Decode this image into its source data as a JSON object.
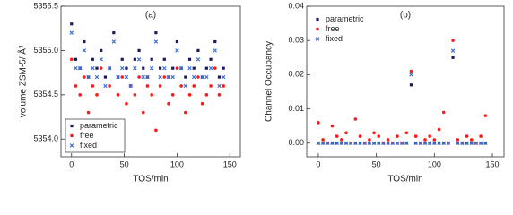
{
  "chart_data": [
    {
      "type": "scatter",
      "annotation": "(a)",
      "x_label": "TOS/min",
      "y_label": "volume ZSM-5/ Å³",
      "x": [
        0,
        4,
        8,
        12,
        16,
        20,
        24,
        28,
        32,
        36,
        40,
        44,
        48,
        52,
        56,
        60,
        64,
        68,
        72,
        76,
        80,
        84,
        88,
        92,
        96,
        100,
        104,
        108,
        112,
        116,
        120,
        124,
        128,
        132,
        136,
        140,
        144
      ],
      "xlim": [
        -10,
        160
      ],
      "xticks": [
        0,
        50,
        100,
        150
      ],
      "ylim": [
        5353.8,
        5355.5
      ],
      "yticks": [
        {
          "value": 5354,
          "label": "5354.0"
        },
        5354.5,
        {
          "value": 5355,
          "label": "5355.0"
        },
        5355.5
      ],
      "legend": "lower left",
      "legend_box": true,
      "series": [
        {
          "name": "parametric",
          "color": "#1a1a5e",
          "marker": "square",
          "values": [
            5355.3,
            5354.9,
            5354.8,
            5355.1,
            5354.7,
            5354.9,
            5354.8,
            5355.0,
            5354.7,
            5354.8,
            5355.2,
            5354.7,
            5354.9,
            5354.8,
            5354.6,
            5354.9,
            5355.0,
            5354.8,
            5354.7,
            5354.9,
            5355.2,
            5354.8,
            5354.9,
            5354.7,
            5354.8,
            5355.1,
            5354.8,
            5354.7,
            5354.9,
            5354.8,
            5355.0,
            5354.7,
            5354.8,
            5354.9,
            5355.1,
            5354.7,
            5354.8
          ]
        },
        {
          "name": "free",
          "color": "#ff1a1a",
          "marker": "circle",
          "values": [
            5354.9,
            5354.6,
            5354.5,
            5354.7,
            5354.3,
            5354.6,
            5354.5,
            5354.8,
            5354.2,
            5354.6,
            5353.9,
            5354.5,
            5354.7,
            5354.4,
            5354.6,
            5354.5,
            5354.7,
            5354.3,
            5354.6,
            5354.5,
            5354.1,
            5354.6,
            5354.7,
            5354.4,
            5354.5,
            5354.8,
            5354.6,
            5354.3,
            5354.5,
            5354.6,
            5354.7,
            5354.4,
            5354.5,
            5354.6,
            5354.8,
            5354.5,
            5354.6
          ]
        },
        {
          "name": "fixed",
          "color": "#3a6fd8",
          "marker": "cross",
          "values": [
            5355.2,
            5354.8,
            5354.8,
            5355.0,
            5354.7,
            5354.8,
            5354.7,
            5354.9,
            5354.6,
            5354.8,
            5355.1,
            5354.7,
            5354.8,
            5354.7,
            5354.6,
            5354.8,
            5354.9,
            5354.7,
            5354.7,
            5354.8,
            5355.1,
            5354.7,
            5354.8,
            5354.7,
            5354.7,
            5355.0,
            5354.8,
            5354.6,
            5354.8,
            5354.7,
            5354.9,
            5354.7,
            5354.7,
            5354.8,
            5355.0,
            5354.6,
            5354.7
          ]
        }
      ]
    },
    {
      "type": "scatter",
      "annotation": "(b)",
      "x_label": "TOS/min",
      "y_label": "Channel Occupancy",
      "x": [
        0,
        4,
        8,
        12,
        16,
        20,
        24,
        28,
        32,
        36,
        40,
        44,
        48,
        52,
        56,
        60,
        64,
        68,
        72,
        76,
        80,
        84,
        88,
        92,
        96,
        100,
        104,
        108,
        112,
        116,
        120,
        124,
        128,
        132,
        136,
        140,
        144
      ],
      "xlim": [
        -10,
        160
      ],
      "xticks": [
        0,
        50,
        100,
        150
      ],
      "ylim": [
        -0.004,
        0.04
      ],
      "yticks": [
        {
          "value": 0,
          "label": "0.00"
        },
        0.01,
        0.02,
        0.03,
        0.04
      ],
      "legend": "upper left",
      "legend_box": false,
      "series": [
        {
          "name": "parametric",
          "color": "#1a1a5e",
          "marker": "square",
          "values": [
            0,
            0,
            0,
            0,
            0,
            0,
            0,
            0,
            0,
            0,
            0,
            0,
            0,
            0,
            0,
            0,
            0,
            0,
            0,
            0,
            0.017,
            0,
            0,
            0,
            0,
            0,
            0,
            0,
            0,
            0.025,
            0,
            0,
            0,
            0,
            0,
            0,
            0
          ]
        },
        {
          "name": "free",
          "color": "#ff1a1a",
          "marker": "circle",
          "values": [
            0.006,
            0.001,
            0,
            0.005,
            0.002,
            0.001,
            0.003,
            0,
            0.007,
            0.002,
            0,
            0.001,
            0.003,
            0.002,
            0,
            0.001,
            0,
            0.002,
            0,
            0.003,
            0.021,
            0.002,
            0,
            0.001,
            0.002,
            0.001,
            0.004,
            0.009,
            0,
            0.03,
            0.001,
            0,
            0.002,
            0.001,
            0,
            0.002,
            0.008
          ]
        },
        {
          "name": "fixed",
          "color": "#3a6fd8",
          "marker": "cross",
          "values": [
            0,
            0,
            0,
            0,
            0,
            0,
            0,
            0,
            0,
            0,
            0,
            0,
            0,
            0,
            0,
            0,
            0,
            0,
            0,
            0,
            0.02,
            0,
            0,
            0,
            0,
            0,
            0,
            0,
            0,
            0.027,
            0,
            0,
            0,
            0,
            0,
            0,
            0
          ]
        }
      ]
    }
  ]
}
